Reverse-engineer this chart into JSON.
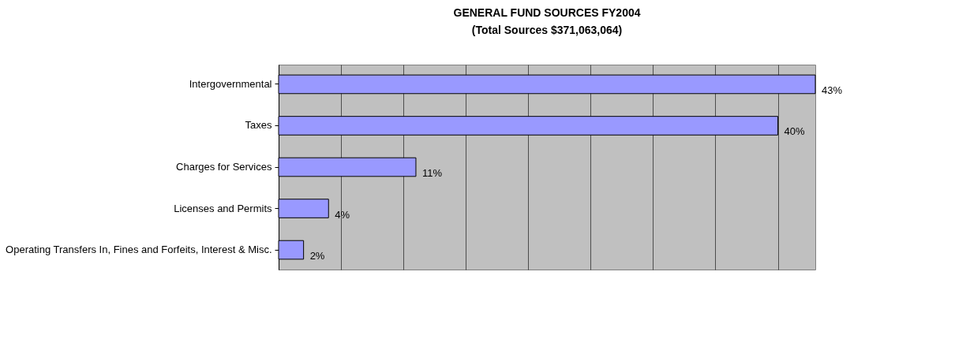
{
  "chart_data": {
    "type": "bar",
    "orientation": "horizontal",
    "title": "GENERAL FUND SOURCES FY2004",
    "subtitle": "(Total Sources $371,063,064)",
    "categories": [
      "Intergovernmental",
      "Taxes",
      "Charges for Services",
      "Licenses and Permits",
      "Operating Transfers In, Fines and Forfeits, Interest & Misc."
    ],
    "values": [
      43,
      40,
      11,
      4,
      2
    ],
    "color": "#9999ff",
    "value_labels": [
      "43%",
      "40%",
      "11%",
      "4%",
      "2%"
    ],
    "grid": "x",
    "tick_labels": "y"
  }
}
